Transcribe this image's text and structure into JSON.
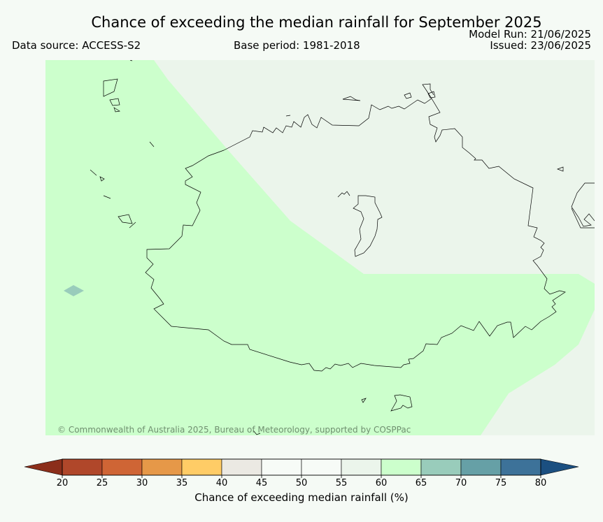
{
  "header": {
    "title": "Chance of exceeding the median rainfall for September 2025",
    "data_source": "Data source: ACCESS-S2",
    "base_period": "Base period: 1981-2018",
    "model_run": "Model Run: 21/06/2025",
    "issued": "Issued: 23/06/2025"
  },
  "map": {
    "copyright": "© Commonwealth of Australia 2025, Bureau of Meteorology, supported by COSPPac",
    "colors": {
      "background_region": "#ebf5eb",
      "green_region": "#ccffcc",
      "teal_spot": "#99ccbb",
      "coastline": "#000000"
    }
  },
  "colorbar": {
    "label": "Chance of exceeding median rainfall (%)",
    "ticks": [
      "20",
      "25",
      "30",
      "35",
      "40",
      "45",
      "50",
      "55",
      "60",
      "65",
      "70",
      "75",
      "80"
    ],
    "under_color": "#8b2e1a",
    "over_color": "#1b4f80",
    "bins": [
      {
        "from": 20,
        "to": 25,
        "color": "#b0472a"
      },
      {
        "from": 25,
        "to": 30,
        "color": "#cf6535"
      },
      {
        "from": 30,
        "to": 35,
        "color": "#e69848"
      },
      {
        "from": 35,
        "to": 40,
        "color": "#ffcc66"
      },
      {
        "from": 40,
        "to": 45,
        "color": "#ebe9e3"
      },
      {
        "from": 45,
        "to": 50,
        "color": "#f7fbf7"
      },
      {
        "from": 50,
        "to": 55,
        "color": "#f7fbf7"
      },
      {
        "from": 55,
        "to": 60,
        "color": "#ebf5eb"
      },
      {
        "from": 60,
        "to": 65,
        "color": "#ccffcc"
      },
      {
        "from": 65,
        "to": 70,
        "color": "#99ccbb"
      },
      {
        "from": 70,
        "to": 75,
        "color": "#66a0a6"
      },
      {
        "from": 75,
        "to": 80,
        "color": "#3d7299"
      }
    ]
  }
}
